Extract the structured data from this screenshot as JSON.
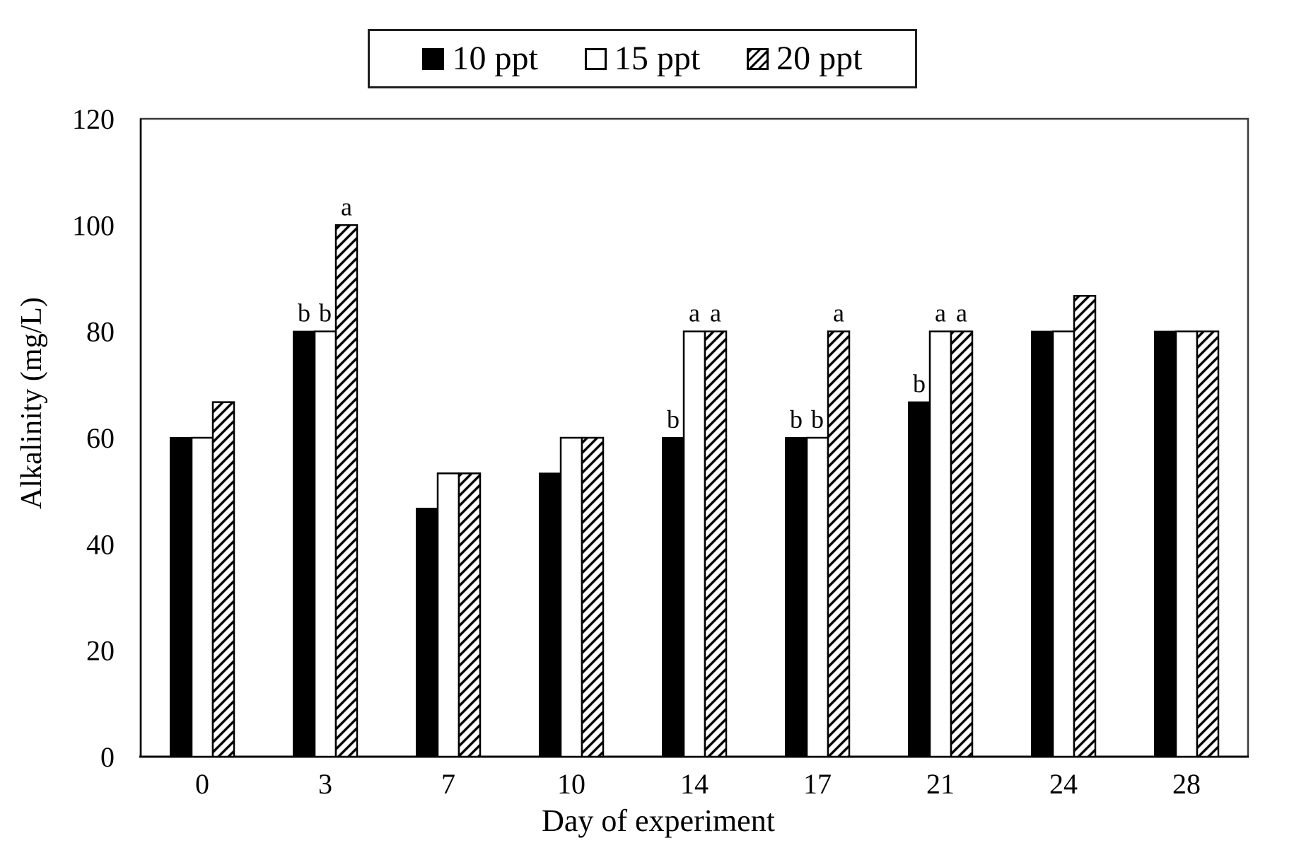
{
  "chart_data": {
    "type": "bar",
    "title": "",
    "xlabel": "Day of experiment",
    "ylabel": "Alkalinity (mg/L)",
    "ylim": [
      0,
      120
    ],
    "yticks": [
      0,
      20,
      40,
      60,
      80,
      100,
      120
    ],
    "categories": [
      "0",
      "3",
      "7",
      "10",
      "14",
      "17",
      "21",
      "24",
      "28"
    ],
    "series": [
      {
        "name": "10 ppt",
        "style": "solid-black",
        "values": [
          60,
          80,
          46.7,
          53.3,
          60,
          60,
          66.7,
          80,
          80
        ],
        "sig_labels": [
          "",
          "b",
          "",
          "",
          "b",
          "b",
          "b",
          "",
          ""
        ]
      },
      {
        "name": "15 ppt",
        "style": "open-white",
        "values": [
          60,
          80,
          53.3,
          60,
          80,
          60,
          80,
          80,
          80
        ],
        "sig_labels": [
          "",
          "b",
          "",
          "",
          "a",
          "b",
          "a",
          "",
          ""
        ]
      },
      {
        "name": "20 ppt",
        "style": "hatched",
        "values": [
          66.7,
          100,
          53.3,
          60,
          80,
          80,
          80,
          86.7,
          80
        ],
        "sig_labels": [
          "",
          "a",
          "",
          "",
          "a",
          "a",
          "a",
          "",
          ""
        ]
      }
    ],
    "legend_position": "top-center",
    "grid": false,
    "hatch_direction": "forward-slash",
    "colors": {
      "bar_black": "#000000",
      "bar_white": "#ffffff",
      "bar_outline": "#000000",
      "axis_frame": "#333333",
      "text": "#000000"
    }
  },
  "legend": {
    "items": [
      {
        "label": "10 ppt",
        "swatch": "solid-black-square"
      },
      {
        "label": "15 ppt",
        "swatch": "open-white-square"
      },
      {
        "label": "20 ppt",
        "swatch": "hatched-square"
      }
    ]
  }
}
